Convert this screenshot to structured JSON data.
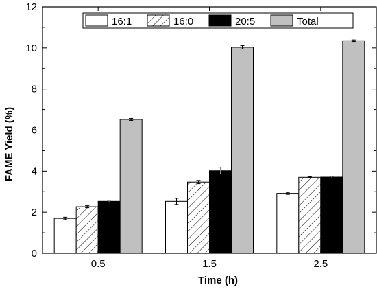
{
  "chart_data": {
    "type": "bar",
    "xlabel": "Time (h)",
    "ylabel": "FAME Yield (%)",
    "ylim": [
      0,
      12
    ],
    "yticks": [
      0,
      2,
      4,
      6,
      8,
      10,
      12
    ],
    "categories": [
      "0.5",
      "1.5",
      "2.5"
    ],
    "grid": false,
    "legend_position": "top-center",
    "series": [
      {
        "name": "16:1",
        "values": [
          1.7,
          2.53,
          2.92
        ],
        "errors": [
          0.06,
          0.15,
          0.05
        ],
        "fill": "#ffffff",
        "pattern": "none"
      },
      {
        "name": "16:0",
        "values": [
          2.27,
          3.47,
          3.7
        ],
        "errors": [
          0.05,
          0.08,
          0.03
        ],
        "fill": "#ffffff",
        "pattern": "hatch"
      },
      {
        "name": "20:5",
        "values": [
          2.53,
          4.02,
          3.71
        ],
        "errors": [
          0.05,
          0.17,
          0.04
        ],
        "fill": "#000000",
        "pattern": "none"
      },
      {
        "name": "Total",
        "values": [
          6.52,
          10.03,
          10.35
        ],
        "errors": [
          0.05,
          0.08,
          0.04
        ],
        "fill": "#c0c0c0",
        "pattern": "none"
      }
    ]
  }
}
